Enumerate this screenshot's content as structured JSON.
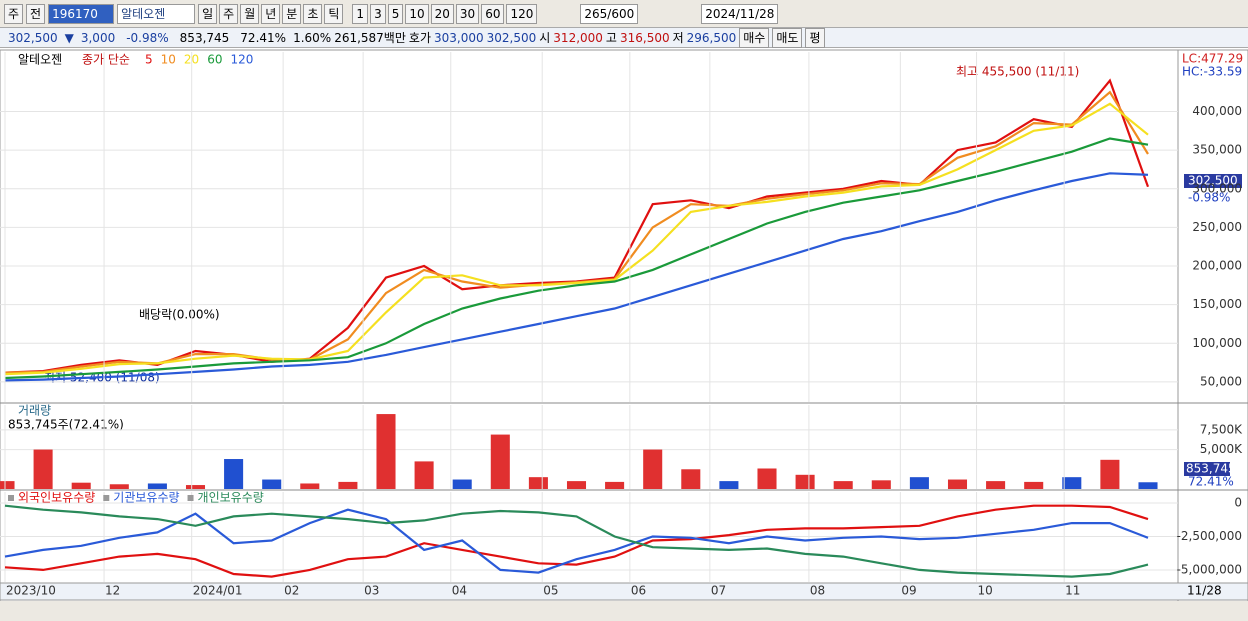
{
  "toolbar": {
    "market": "주",
    "prev": "전",
    "code": "196170",
    "name": "알테오젠",
    "periods": [
      "일",
      "주",
      "월",
      "년",
      "분",
      "초",
      "틱"
    ],
    "intervals": [
      "1",
      "3",
      "5",
      "10",
      "20",
      "30",
      "60",
      "120"
    ],
    "count": "265",
    "max": "/600",
    "date": "2024/11/28"
  },
  "quote": {
    "price": "302,500",
    "arrow": "▼",
    "change": "3,000",
    "rate": "-0.98%",
    "volume": "853,745",
    "vol_ratio": "72.41%",
    "turnover": "1.60%",
    "amount": "261,587백만",
    "ask_label": "호가",
    "ask": "303,000",
    "bid": "302,500",
    "open_label": "시",
    "open": "312,000",
    "high_label": "고",
    "high": "316,500",
    "low_label": "저",
    "low": "296,500",
    "buy": "매수",
    "sell": "매도",
    "avg": "평"
  },
  "chart_data": [
    {
      "type": "line",
      "title": "알테오젠",
      "legend_prefix": "종가 단순",
      "xlim": [
        0,
        30
      ],
      "ylim": [
        24000,
        477000
      ],
      "yticks": [
        {
          "value": 50000,
          "label": "50,000"
        },
        {
          "value": 100000,
          "label": "100,000"
        },
        {
          "value": 150000,
          "label": "150,000"
        },
        {
          "value": 200000,
          "label": "200,000"
        },
        {
          "value": 250000,
          "label": "250,000"
        },
        {
          "value": 300000,
          "label": "300,000"
        },
        {
          "value": 350000,
          "label": "350,000"
        },
        {
          "value": 400000,
          "label": "400,000"
        }
      ],
      "corner_labels": [
        "LC:477.29",
        "HC:-33.59"
      ],
      "last_label": "302,500",
      "last_change": "-0.98%",
      "annotations": [
        "최고 455,500 (11/11)",
        "배당락(0.00%)",
        "최저 52,400 (11/08)"
      ],
      "series": [
        {
          "name": "5",
          "color": "#e01010",
          "values": [
            62000,
            64000,
            72000,
            78000,
            72000,
            90000,
            85000,
            76000,
            80000,
            120000,
            185000,
            200000,
            170000,
            175000,
            178000,
            180000,
            185000,
            280000,
            285000,
            275000,
            290000,
            295000,
            300000,
            310000,
            305000,
            350000,
            360000,
            390000,
            380000,
            440000,
            302500
          ]
        },
        {
          "name": "10",
          "color": "#f08c20",
          "values": [
            62000,
            63000,
            70000,
            76000,
            74000,
            86000,
            86000,
            79000,
            79000,
            105000,
            165000,
            195000,
            180000,
            172000,
            176000,
            179000,
            183000,
            250000,
            280000,
            278000,
            287000,
            293000,
            298000,
            307000,
            306000,
            340000,
            355000,
            385000,
            383000,
            425000,
            345000
          ]
        },
        {
          "name": "20",
          "color": "#f5e020",
          "values": [
            60000,
            62000,
            67000,
            73000,
            74000,
            80000,
            84000,
            80000,
            79000,
            90000,
            140000,
            185000,
            188000,
            175000,
            175000,
            178000,
            182000,
            220000,
            270000,
            278000,
            283000,
            290000,
            295000,
            303000,
            305000,
            325000,
            350000,
            375000,
            382000,
            410000,
            370000
          ]
        },
        {
          "name": "60",
          "color": "#1a9a3a",
          "values": [
            55000,
            57000,
            60000,
            63000,
            66000,
            70000,
            74000,
            76000,
            78000,
            82000,
            100000,
            125000,
            145000,
            158000,
            168000,
            175000,
            180000,
            195000,
            215000,
            235000,
            255000,
            270000,
            282000,
            290000,
            298000,
            310000,
            322000,
            335000,
            348000,
            365000,
            357000
          ]
        },
        {
          "name": "120",
          "color": "#2a5ad8",
          "values": [
            52000,
            53000,
            55000,
            57000,
            60000,
            63000,
            66000,
            70000,
            72000,
            76000,
            85000,
            95000,
            105000,
            115000,
            125000,
            135000,
            145000,
            160000,
            175000,
            190000,
            205000,
            220000,
            235000,
            245000,
            258000,
            270000,
            285000,
            298000,
            310000,
            320000,
            318000
          ]
        }
      ]
    },
    {
      "type": "bar",
      "title": "거래량",
      "subtitle": "853,745주(72.41%)",
      "xlim": [
        0,
        30
      ],
      "ylim": [
        0,
        10650
      ],
      "color": "#e03030",
      "down_color": "#2050d0",
      "yticks": [
        {
          "value": 5000,
          "label": "5,000K"
        },
        {
          "value": 7500,
          "label": "7,500K"
        }
      ],
      "last_label": "853,745",
      "last_ratio": "72.41%",
      "values": [
        1000,
        5000,
        800,
        600,
        700,
        500,
        3800,
        1200,
        700,
        900,
        9500,
        3500,
        1200,
        6900,
        1500,
        1000,
        900,
        5000,
        2500,
        1000,
        2600,
        1800,
        1000,
        1100,
        1500,
        1200,
        1000,
        900,
        1500,
        3700,
        853.745
      ]
    },
    {
      "type": "line",
      "xlim": [
        0,
        30
      ],
      "ylim": [
        -5900000,
        820000
      ],
      "yticks": [
        0,
        {
          "value": -2500000,
          "label": "-2,500,000"
        },
        {
          "value": -5000000,
          "label": "-5,000,000"
        }
      ],
      "xticks": [
        {
          "value": 0,
          "label": "2023/10"
        },
        {
          "value": 2.6,
          "label": "12"
        },
        {
          "value": 4.9,
          "label": "2024/01"
        },
        {
          "value": 7.3,
          "label": "02"
        },
        {
          "value": 9.4,
          "label": "03"
        },
        {
          "value": 11.7,
          "label": "04"
        },
        {
          "value": 14.1,
          "label": "05"
        },
        {
          "value": 16.4,
          "label": "06"
        },
        {
          "value": 18.5,
          "label": "07"
        },
        {
          "value": 21.1,
          "label": "08"
        },
        {
          "value": 23.5,
          "label": "09"
        },
        {
          "value": 25.5,
          "label": "10"
        },
        {
          "value": 27.8,
          "label": "11"
        }
      ],
      "last_date": "11/28",
      "series": [
        {
          "name": "외국인보유수량",
          "color": "#e01010",
          "values": [
            -4800000,
            -5000000,
            -4500000,
            -4000000,
            -3800000,
            -4200000,
            -5300000,
            -5500000,
            -5000000,
            -4200000,
            -4000000,
            -3000000,
            -3500000,
            -4000000,
            -4500000,
            -4600000,
            -4000000,
            -2800000,
            -2700000,
            -2400000,
            -2000000,
            -1900000,
            -1900000,
            -1800000,
            -1700000,
            -1000000,
            -500000,
            -200000,
            -200000,
            -300000,
            -1200000
          ]
        },
        {
          "name": "기관보유수량",
          "color": "#2a5ad8",
          "values": [
            -4000000,
            -3500000,
            -3200000,
            -2600000,
            -2200000,
            -800000,
            -3000000,
            -2800000,
            -1500000,
            -500000,
            -1200000,
            -3500000,
            -2800000,
            -5000000,
            -5200000,
            -4200000,
            -3500000,
            -2500000,
            -2600000,
            -3000000,
            -2500000,
            -2800000,
            -2600000,
            -2500000,
            -2700000,
            -2600000,
            -2300000,
            -2000000,
            -1500000,
            -1500000,
            -2600000
          ]
        },
        {
          "name": "개인보유수량",
          "color": "#2a8a5a",
          "values": [
            -200000,
            -500000,
            -700000,
            -1000000,
            -1200000,
            -1700000,
            -1000000,
            -800000,
            -1000000,
            -1200000,
            -1500000,
            -1300000,
            -800000,
            -600000,
            -700000,
            -1000000,
            -2500000,
            -3300000,
            -3400000,
            -3500000,
            -3400000,
            -3800000,
            -4000000,
            -4500000,
            -5000000,
            -5200000,
            -5300000,
            -5400000,
            -5500000,
            -5300000,
            -4600000
          ]
        }
      ]
    }
  ]
}
